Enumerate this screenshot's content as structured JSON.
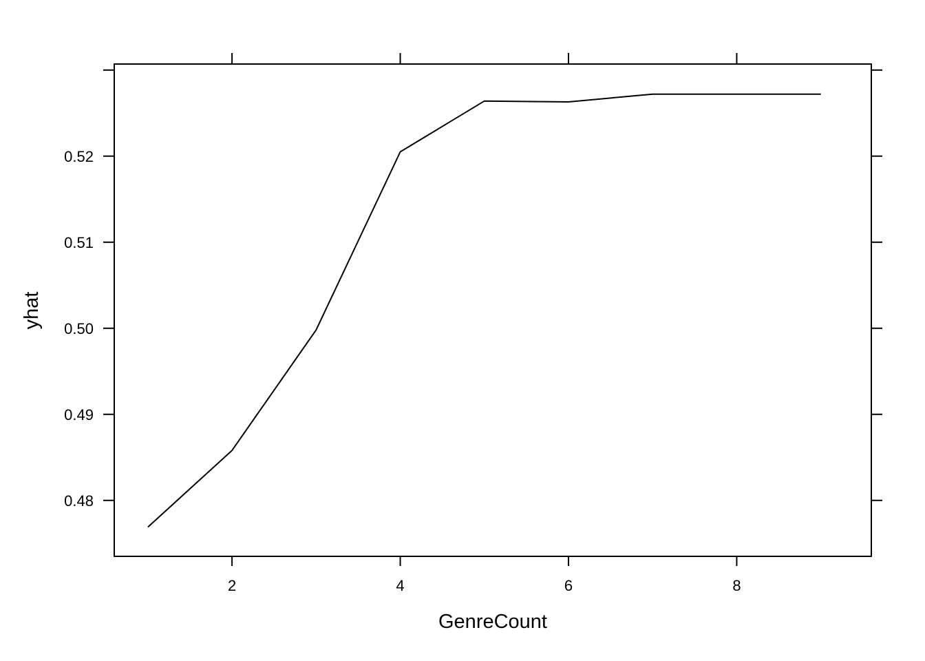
{
  "chart_data": {
    "type": "line",
    "title": "",
    "xlabel": "GenreCount",
    "ylabel": "yhat",
    "x": [
      1,
      2,
      3,
      4,
      5,
      6,
      7,
      8,
      9
    ],
    "series": [
      {
        "values": [
          0.4769,
          0.4858,
          0.4998,
          0.5205,
          0.5264,
          0.5263,
          0.5272,
          0.5272,
          0.5272
        ]
      }
    ],
    "xlim": [
      0.6,
      9.6
    ],
    "ylim": [
      0.4735,
      0.5307
    ],
    "xticks": [
      2,
      4,
      6,
      8
    ],
    "yticks": [
      0.48,
      0.49,
      0.5,
      0.51,
      0.52,
      0.53
    ],
    "xtick_labels": [
      "2",
      "4",
      "6",
      "8"
    ],
    "ytick_labels": [
      "0.48",
      "0.49",
      "0.50",
      "0.51",
      "0.52",
      ""
    ],
    "grid": false,
    "line_color": "#000000"
  }
}
